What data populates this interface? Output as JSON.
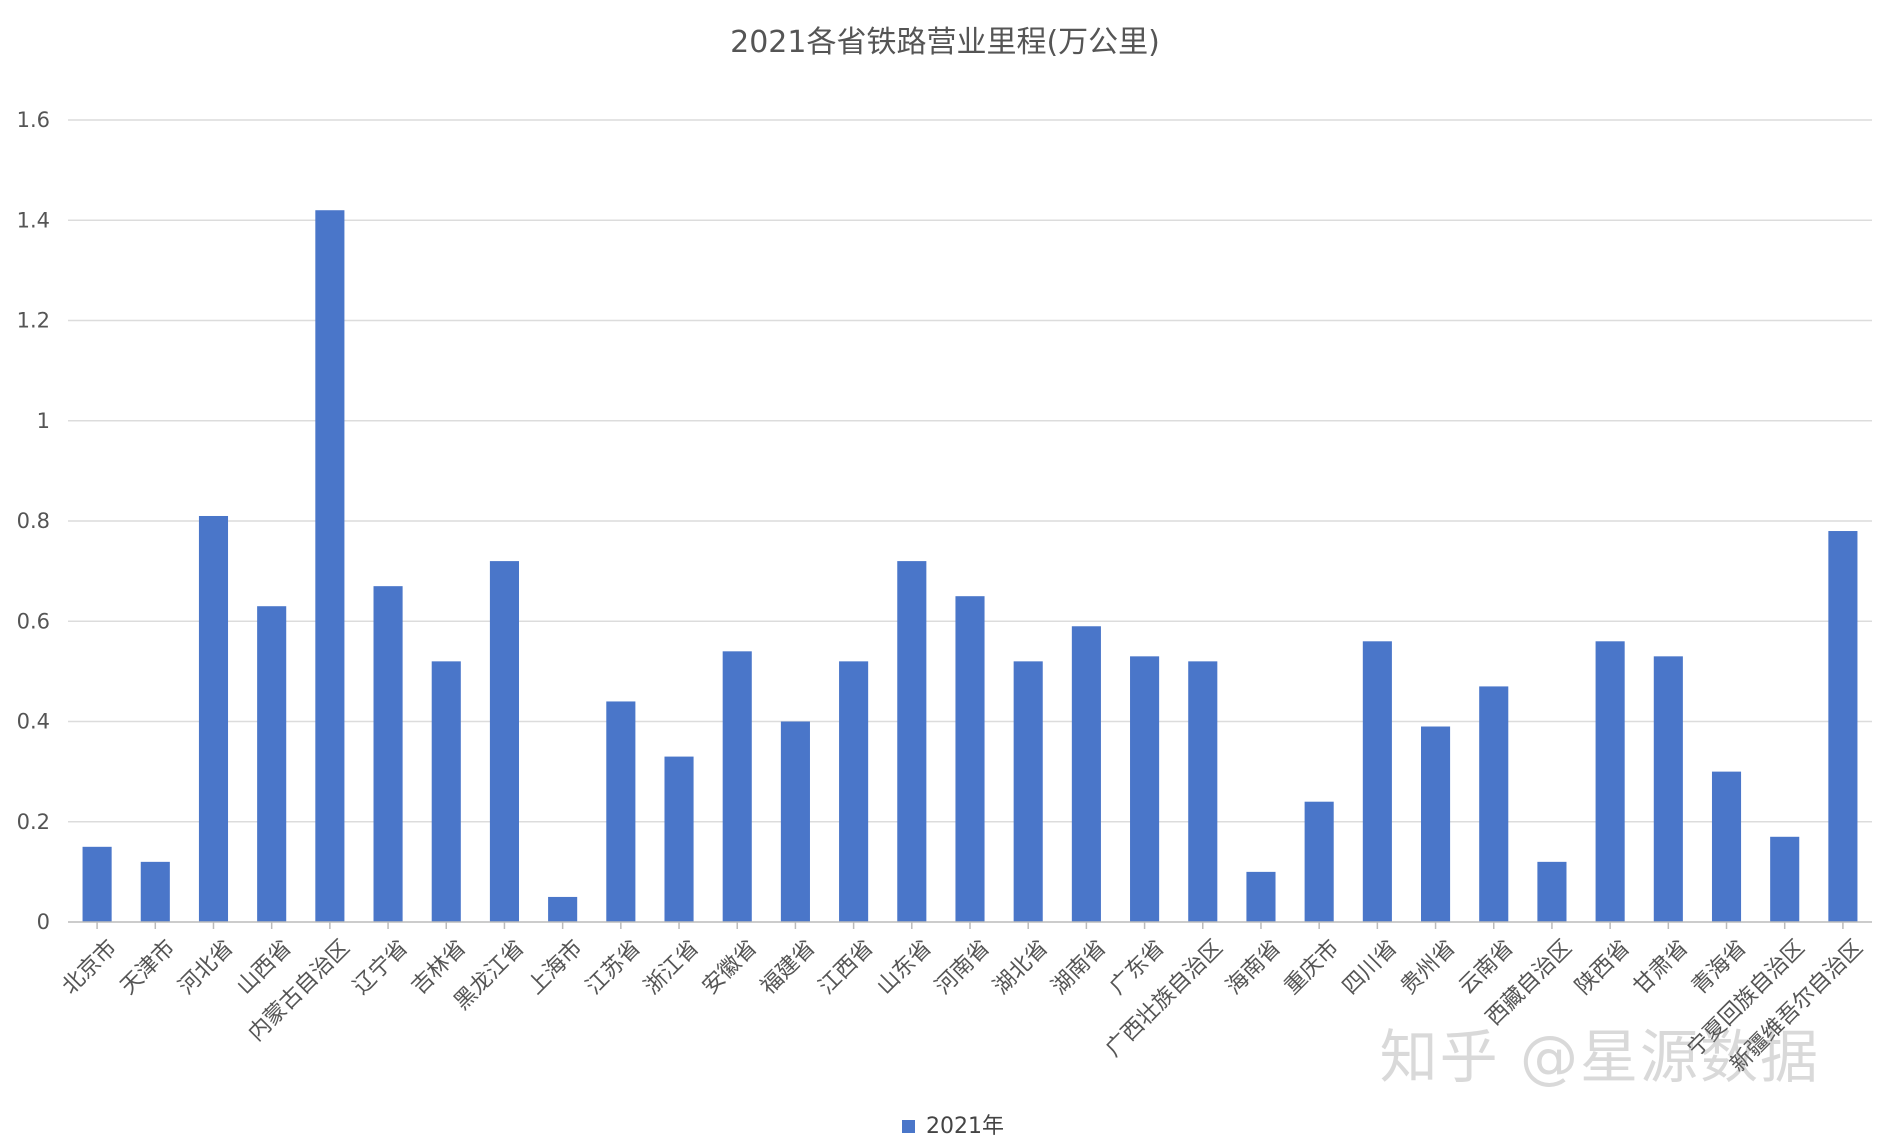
{
  "watermark": "知乎 @星源数据",
  "chart_data": {
    "type": "bar",
    "title": "2021各省铁路营业里程(万公里)",
    "xlabel": "",
    "ylabel": "",
    "ylim": [
      0,
      1.6
    ],
    "yticks": [
      "0",
      "0.2",
      "0.4",
      "0.6",
      "0.8",
      "1",
      "1.2",
      "1.4",
      "1.6"
    ],
    "grid": true,
    "legend_position": "bottom",
    "bar_color": "#4A76C9",
    "categories": [
      "北京市",
      "天津市",
      "河北省",
      "山西省",
      "内蒙古自治区",
      "辽宁省",
      "吉林省",
      "黑龙江省",
      "上海市",
      "江苏省",
      "浙江省",
      "安徽省",
      "福建省",
      "江西省",
      "山东省",
      "河南省",
      "湖北省",
      "湖南省",
      "广东省",
      "广西壮族自治区",
      "海南省",
      "重庆市",
      "四川省",
      "贵州省",
      "云南省",
      "西藏自治区",
      "陕西省",
      "甘肃省",
      "青海省",
      "宁夏回族自治区",
      "新疆维吾尔自治区"
    ],
    "series": [
      {
        "name": "2021年",
        "values": [
          0.15,
          0.12,
          0.81,
          0.63,
          1.42,
          0.67,
          0.52,
          0.72,
          0.05,
          0.44,
          0.33,
          0.54,
          0.4,
          0.52,
          0.72,
          0.65,
          0.52,
          0.59,
          0.53,
          0.52,
          0.1,
          0.24,
          0.56,
          0.39,
          0.47,
          0.12,
          0.56,
          0.53,
          0.3,
          0.17,
          0.78
        ]
      }
    ]
  }
}
